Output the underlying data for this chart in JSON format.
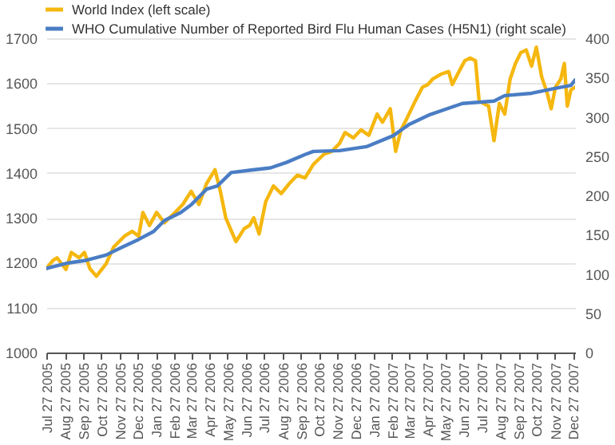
{
  "chart_data": {
    "type": "line",
    "legend": "top left",
    "grid": "y",
    "xlim": [
      "2005-07-27",
      "2007-12-31"
    ],
    "xticks": [
      {
        "value": "2005-07-27",
        "label": "Jul 27 2005"
      },
      {
        "value": "2005-08-27",
        "label": "Aug 27 2005"
      },
      {
        "value": "2005-09-27",
        "label": "Sep 27 2005"
      },
      {
        "value": "2005-10-27",
        "label": "Oct 27 2005"
      },
      {
        "value": "2005-11-27",
        "label": "Nov 27 2005"
      },
      {
        "value": "2005-12-27",
        "label": "Dec 27 2005"
      },
      {
        "value": "2006-01-27",
        "label": "Jan 27 2006"
      },
      {
        "value": "2006-02-27",
        "label": "Feb 27 2006"
      },
      {
        "value": "2006-03-27",
        "label": "Mar 27 2006"
      },
      {
        "value": "2006-04-27",
        "label": "Apr 27 2006"
      },
      {
        "value": "2006-05-27",
        "label": "May 27 2006"
      },
      {
        "value": "2006-06-27",
        "label": "Jun 27 2006"
      },
      {
        "value": "2006-07-27",
        "label": "Jul 27 2006"
      },
      {
        "value": "2006-08-27",
        "label": "Aug 27 2006"
      },
      {
        "value": "2006-09-27",
        "label": "Sep 27 2006"
      },
      {
        "value": "2006-10-27",
        "label": "Oct 27 2006"
      },
      {
        "value": "2006-11-27",
        "label": "Nov 27 2006"
      },
      {
        "value": "2006-12-27",
        "label": "Dec 27 2006"
      },
      {
        "value": "2007-01-27",
        "label": "Jan 27 2007"
      },
      {
        "value": "2007-02-27",
        "label": "Feb 27 2007"
      },
      {
        "value": "2007-03-27",
        "label": "Mar 27 2007"
      },
      {
        "value": "2007-04-27",
        "label": "Apr 27 2007"
      },
      {
        "value": "2007-05-27",
        "label": "May 27 2007"
      },
      {
        "value": "2007-06-27",
        "label": "Jun 27 2007"
      },
      {
        "value": "2007-07-27",
        "label": "Jul 27 2007"
      },
      {
        "value": "2007-08-27",
        "label": "Aug 27 2007"
      },
      {
        "value": "2007-09-27",
        "label": "Sep 27 2007"
      },
      {
        "value": "2007-10-27",
        "label": "Oct 27 2007"
      },
      {
        "value": "2007-11-27",
        "label": "Nov 27 2007"
      },
      {
        "value": "2007-12-27",
        "label": "Dec 27 2007"
      }
    ],
    "ylim": [
      1000,
      1700
    ],
    "yticks": [
      1000,
      1100,
      1200,
      1300,
      1400,
      1500,
      1600,
      1700
    ],
    "y2lim": [
      0,
      400
    ],
    "y2ticks": [
      0,
      50,
      100,
      150,
      200,
      250,
      300,
      350,
      400
    ],
    "series": [
      {
        "name": "World Index (left scale)",
        "color": "#f5b70f",
        "axis": "y",
        "x": [
          "2005-07-27",
          "2005-08-07",
          "2005-08-14",
          "2005-08-29",
          "2005-09-07",
          "2005-09-20",
          "2005-09-29",
          "2005-10-08",
          "2005-10-19",
          "2005-11-04",
          "2005-11-17",
          "2005-12-05",
          "2005-12-18",
          "2005-12-29",
          "2006-01-05",
          "2006-01-16",
          "2006-01-28",
          "2006-02-10",
          "2006-02-28",
          "2006-03-13",
          "2006-03-27",
          "2006-04-09",
          "2006-04-22",
          "2006-05-06",
          "2006-05-15",
          "2006-05-24",
          "2006-06-10",
          "2006-06-24",
          "2006-07-03",
          "2006-07-10",
          "2006-07-19",
          "2006-07-30",
          "2006-08-12",
          "2006-08-25",
          "2006-09-08",
          "2006-09-21",
          "2006-10-04",
          "2006-10-18",
          "2006-11-05",
          "2006-11-18",
          "2006-12-01",
          "2006-12-10",
          "2006-12-24",
          "2007-01-06",
          "2007-01-19",
          "2007-02-02",
          "2007-02-11",
          "2007-02-24",
          "2007-03-05",
          "2007-03-14",
          "2007-03-23",
          "2007-04-05",
          "2007-04-19",
          "2007-04-28",
          "2007-05-06",
          "2007-05-20",
          "2007-06-02",
          "2007-06-08",
          "2007-06-17",
          "2007-06-29",
          "2007-07-08",
          "2007-07-17",
          "2007-07-23",
          "2007-07-30",
          "2007-08-08",
          "2007-08-17",
          "2007-08-26",
          "2007-09-04",
          "2007-09-13",
          "2007-09-22",
          "2007-10-01",
          "2007-10-10",
          "2007-10-19",
          "2007-10-27",
          "2007-11-05",
          "2007-11-14",
          "2007-11-21",
          "2007-11-28",
          "2007-12-07",
          "2007-12-13",
          "2007-12-18",
          "2007-12-24",
          "2007-12-31"
        ],
        "values": [
          1187,
          1205,
          1211,
          1185,
          1223,
          1211,
          1223,
          1187,
          1170,
          1197,
          1235,
          1259,
          1270,
          1259,
          1312,
          1283,
          1312,
          1289,
          1312,
          1330,
          1359,
          1330,
          1377,
          1407,
          1359,
          1300,
          1247,
          1276,
          1283,
          1300,
          1264,
          1336,
          1371,
          1354,
          1377,
          1395,
          1389,
          1419,
          1442,
          1448,
          1466,
          1490,
          1478,
          1496,
          1484,
          1531,
          1513,
          1543,
          1448,
          1496,
          1519,
          1555,
          1591,
          1597,
          1609,
          1620,
          1626,
          1597,
          1620,
          1650,
          1656,
          1650,
          1561,
          1555,
          1549,
          1472,
          1555,
          1531,
          1609,
          1644,
          1668,
          1674,
          1638,
          1680,
          1614,
          1579,
          1543,
          1591,
          1609,
          1644,
          1549,
          1585,
          1591
        ]
      },
      {
        "name": "WHO Cumulative Number of Reported Bird Flu Human Cases (H5N1) (right scale)",
        "color": "#4a7dc4",
        "axis": "y2",
        "x": [
          "2005-07-27",
          "2005-09-02",
          "2005-09-29",
          "2005-11-04",
          "2005-12-01",
          "2005-12-29",
          "2006-01-23",
          "2006-02-10",
          "2006-03-09",
          "2006-03-27",
          "2006-04-22",
          "2006-05-10",
          "2006-06-02",
          "2006-07-03",
          "2006-08-07",
          "2006-09-03",
          "2006-10-04",
          "2006-10-18",
          "2006-12-01",
          "2007-01-15",
          "2007-03-01",
          "2007-03-27",
          "2007-05-02",
          "2007-06-25",
          "2007-08-17",
          "2007-09-04",
          "2007-10-19",
          "2007-12-02",
          "2007-12-24",
          "2007-12-31"
        ],
        "values": [
          107,
          114,
          117,
          124,
          134,
          144,
          154,
          168,
          178,
          188,
          208,
          212,
          229,
          232,
          235,
          242,
          252,
          256,
          257,
          262,
          276,
          290,
          303,
          317,
          320,
          327,
          330,
          337,
          340,
          347
        ]
      }
    ]
  }
}
